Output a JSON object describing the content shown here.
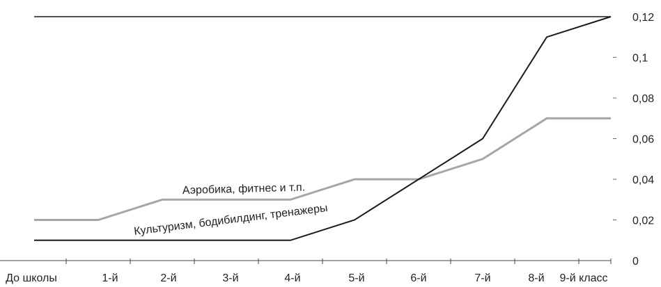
{
  "chart_data": {
    "type": "line",
    "categories": [
      "До школы",
      "1-й",
      "2-й",
      "3-й",
      "4-й",
      "5-й",
      "6-й",
      "7-й",
      "8-й",
      "9-й класс"
    ],
    "ylim": [
      0,
      0.12
    ],
    "y_ticks": [
      "0",
      "0,02",
      "0,04",
      "0,06",
      "0,08",
      "0,1",
      "0,12"
    ],
    "y_axis_position": "right",
    "grid": false,
    "series": [
      {
        "name": "Аэробика, фитнес и т.п.",
        "color": "#a6a6a6",
        "values": [
          0.02,
          0.02,
          0.03,
          0.03,
          0.03,
          0.04,
          0.04,
          0.05,
          0.07,
          0.07
        ]
      },
      {
        "name": "Культуризм, бодибилдинг, тренажеры",
        "color": "#1a1a1a",
        "values": [
          0.01,
          0.01,
          0.01,
          0.01,
          0.01,
          0.02,
          0.04,
          0.06,
          0.11,
          0.12
        ]
      }
    ],
    "reference_line": {
      "value": 0.12,
      "color": "#1a1a1a"
    }
  }
}
